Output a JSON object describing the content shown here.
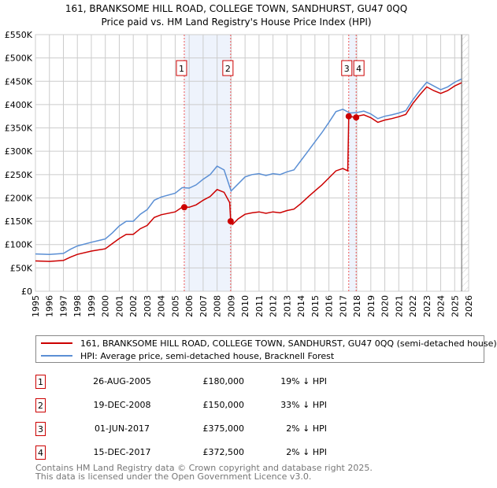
{
  "chart_data": {
    "type": "line",
    "title": "161, BRANKSOME HILL ROAD, COLLEGE TOWN, SANDHURST, GU47 0QQ",
    "subtitle": "Price paid vs. HM Land Registry's House Price Index (HPI)",
    "xlim": [
      1995,
      2026
    ],
    "ylim": [
      0,
      550000
    ],
    "x_ticks": [
      "1995",
      "1996",
      "1997",
      "1998",
      "1999",
      "2000",
      "2001",
      "2002",
      "2003",
      "2004",
      "2005",
      "2006",
      "2007",
      "2008",
      "2009",
      "2010",
      "2011",
      "2012",
      "2013",
      "2014",
      "2015",
      "2016",
      "2017",
      "2018",
      "2019",
      "2020",
      "2021",
      "2022",
      "2023",
      "2024",
      "2025",
      "2026"
    ],
    "y_ticks": [
      {
        "value": 0,
        "label": "£0"
      },
      {
        "value": 50000,
        "label": "£50K"
      },
      {
        "value": 100000,
        "label": "£100K"
      },
      {
        "value": 150000,
        "label": "£150K"
      },
      {
        "value": 200000,
        "label": "£200K"
      },
      {
        "value": 250000,
        "label": "£250K"
      },
      {
        "value": 300000,
        "label": "£300K"
      },
      {
        "value": 350000,
        "label": "£350K"
      },
      {
        "value": 400000,
        "label": "£400K"
      },
      {
        "value": 450000,
        "label": "£450K"
      },
      {
        "value": 500000,
        "label": "£500K"
      },
      {
        "value": 550000,
        "label": "£550K"
      }
    ],
    "grid": true,
    "colors": {
      "price": "#cc0000",
      "hpi": "#5b8fd4",
      "shade": "#eef3fc",
      "marker_border": "#cc0000"
    },
    "shaded_ranges": [
      [
        2005.65,
        2008.97
      ],
      [
        2017.42,
        2017.95
      ]
    ],
    "forecast_start": 2025.5,
    "series": [
      {
        "name": "161, BRANKSOME HILL ROAD, COLLEGE TOWN, SANDHURST, GU47 0QQ (semi-detached house)",
        "key": "price",
        "x": [
          1995,
          1996,
          1997,
          1997.5,
          1998,
          1999,
          2000,
          2000.5,
          2001,
          2001.5,
          2002,
          2002.5,
          2003,
          2003.5,
          2004,
          2005,
          2005.5,
          2006,
          2006.5,
          2007,
          2007.5,
          2008,
          2008.5,
          2008.9,
          2008.97,
          2009.1,
          2009.5,
          2010,
          2010.5,
          2011,
          2011.5,
          2012,
          2012.5,
          2013,
          2013.5,
          2014,
          2014.5,
          2015,
          2015.5,
          2016,
          2016.5,
          2017,
          2017.35,
          2017.42,
          2017.95,
          2018,
          2018.5,
          2019,
          2019.5,
          2020,
          2020.5,
          2021,
          2021.5,
          2022,
          2022.5,
          2023,
          2023.5,
          2024,
          2024.5,
          2025,
          2025.5
        ],
        "values": [
          65000,
          64000,
          66000,
          73000,
          79000,
          86000,
          91000,
          102000,
          113000,
          122000,
          122000,
          134000,
          141000,
          158000,
          164000,
          170000,
          180000,
          180000,
          185000,
          195000,
          203000,
          218000,
          212000,
          190000,
          150000,
          143000,
          155000,
          165000,
          168000,
          170000,
          167000,
          170000,
          168000,
          173000,
          176000,
          188000,
          202000,
          215000,
          228000,
          243000,
          258000,
          263000,
          258000,
          375000,
          372500,
          375000,
          378000,
          372000,
          362000,
          367000,
          370000,
          374000,
          379000,
          402000,
          421000,
          438000,
          430000,
          424000,
          430000,
          440000,
          447000
        ]
      },
      {
        "name": "HPI: Average price, semi-detached house, Bracknell Forest",
        "key": "hpi",
        "x": [
          1995,
          1996,
          1997,
          1997.5,
          1998,
          1999,
          2000,
          2000.5,
          2001,
          2001.5,
          2002,
          2002.5,
          2003,
          2003.5,
          2004,
          2005,
          2005.5,
          2006,
          2006.5,
          2007,
          2007.5,
          2008,
          2008.5,
          2009,
          2009.5,
          2010,
          2010.5,
          2011,
          2011.5,
          2012,
          2012.5,
          2013,
          2013.5,
          2014,
          2014.5,
          2015,
          2015.5,
          2016,
          2016.5,
          2017,
          2017.5,
          2018,
          2018.5,
          2019,
          2019.5,
          2020,
          2020.5,
          2021,
          2021.5,
          2022,
          2022.5,
          2023,
          2023.5,
          2024,
          2024.5,
          2025,
          2025.5
        ],
        "values": [
          80000,
          79000,
          81000,
          90000,
          97000,
          105000,
          112000,
          125000,
          140000,
          150000,
          150000,
          165000,
          175000,
          195000,
          202000,
          210000,
          222000,
          221000,
          228000,
          240000,
          250000,
          268000,
          260000,
          215000,
          230000,
          245000,
          250000,
          252000,
          248000,
          252000,
          250000,
          256000,
          260000,
          280000,
          300000,
          320000,
          340000,
          362000,
          385000,
          390000,
          382000,
          383000,
          386000,
          380000,
          370000,
          375000,
          378000,
          382000,
          387000,
          410000,
          430000,
          448000,
          440000,
          432000,
          438000,
          448000,
          455000
        ]
      }
    ],
    "sales": [
      {
        "n": "1",
        "x": 2005.65,
        "value": 180000,
        "date": "26-AUG-2005",
        "price": "£180,000",
        "pct": "19% ↓ HPI"
      },
      {
        "n": "2",
        "x": 2008.97,
        "value": 150000,
        "date": "19-DEC-2008",
        "price": "£150,000",
        "pct": "33% ↓ HPI"
      },
      {
        "n": "3",
        "x": 2017.42,
        "value": 375000,
        "date": "01-JUN-2017",
        "price": "£375,000",
        "pct": "2% ↓ HPI"
      },
      {
        "n": "4",
        "x": 2017.95,
        "value": 372500,
        "date": "15-DEC-2017",
        "price": "£372,500",
        "pct": "2% ↓ HPI"
      }
    ]
  },
  "legend": {
    "price_label": "161, BRANKSOME HILL ROAD, COLLEGE TOWN, SANDHURST, GU47 0QQ (semi-detached house)",
    "hpi_label": "HPI: Average price, semi-detached house, Bracknell Forest"
  },
  "footer": {
    "line1": "Contains HM Land Registry data © Crown copyright and database right 2025.",
    "line2": "This data is licensed under the Open Government Licence v3.0."
  }
}
